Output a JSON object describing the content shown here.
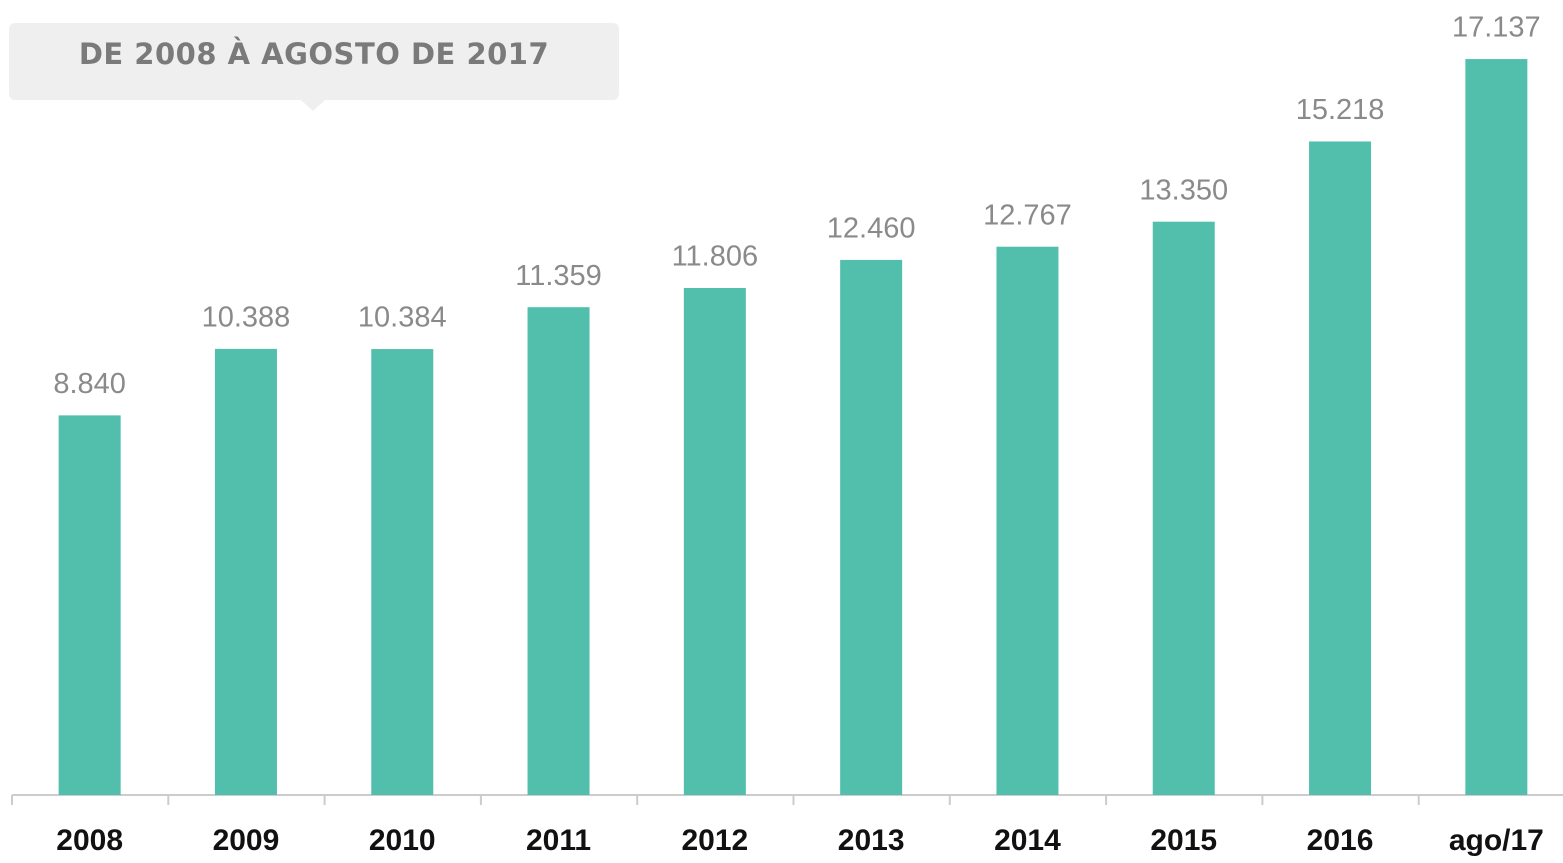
{
  "chart_data": {
    "type": "bar",
    "title": "DE 2008 À AGOSTO DE 2017",
    "categories": [
      "2008",
      "2009",
      "2010",
      "2011",
      "2012",
      "2013",
      "2014",
      "2015",
      "2016",
      "ago/17"
    ],
    "values": [
      8840,
      10388,
      10384,
      11359,
      11806,
      12460,
      12767,
      13350,
      15218,
      17137
    ],
    "value_labels": [
      "8.840",
      "10.388",
      "10.384",
      "11.359",
      "11.806",
      "12.460",
      "12.767",
      "13.350",
      "15.218",
      "17.137"
    ],
    "color": "#52bfad",
    "ylim": [
      0,
      18000
    ]
  }
}
